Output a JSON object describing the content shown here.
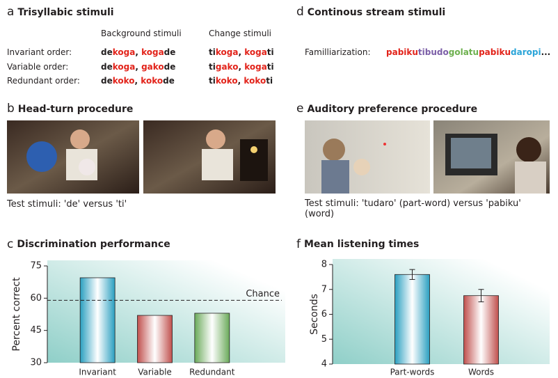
{
  "panels": {
    "a": {
      "letter": "a",
      "title": "Trisyllabic stimuli",
      "column_headers": [
        "Background stimuli",
        "Change stimuli"
      ],
      "rows": [
        {
          "label": "Invariant order:",
          "background": [
            "de",
            "koga",
            ", ",
            "koga",
            "de"
          ],
          "change": [
            "ti",
            "koga",
            ", ",
            "koga",
            "ti"
          ]
        },
        {
          "label": "Variable order:",
          "background": [
            "de",
            "koga",
            ", ",
            "gako",
            "de"
          ],
          "change": [
            "ti",
            "gako",
            ", ",
            "koga",
            "ti"
          ]
        },
        {
          "label": "Redundant order:",
          "background": [
            "de",
            "koko",
            ", ",
            "koko",
            "de"
          ],
          "change": [
            "ti",
            "koko",
            ", ",
            "koko",
            "ti"
          ]
        }
      ],
      "segment_colors": [
        "#231f20",
        "#e2231a",
        "#231f20",
        "#e2231a",
        "#231f20"
      ]
    },
    "b": {
      "letter": "b",
      "title": "Head-turn procedure",
      "caption": "Test stimuli: 'de' versus 'ti'"
    },
    "d": {
      "letter": "d",
      "title": "Continous stream stimuli",
      "label": "Familliarization:",
      "stream": [
        "pabiku",
        "tibudo",
        "golatu",
        "pabiku",
        "daropi",
        "..."
      ],
      "stream_colors": [
        "#e2231a",
        "#7b5ea7",
        "#6db04e",
        "#e2231a",
        "#2aa4d8",
        "#231f20"
      ]
    },
    "e": {
      "letter": "e",
      "title": "Auditory preference procedure",
      "caption": "Test stimuli: 'tudaro' (part-word) versus 'pabiku' (word)"
    }
  },
  "chart_data": [
    {
      "type": "bar",
      "letter": "c",
      "title": "Discrimination performance",
      "ylabel": "Percent correct",
      "categories": [
        "Invariant",
        "Variable",
        "Redundant"
      ],
      "values": [
        69.5,
        52,
        53
      ],
      "colors": [
        "#2a9fc0",
        "#c0504d",
        "#6aaa5a"
      ],
      "ylim": [
        30,
        75
      ],
      "yticks": [
        30,
        45,
        60,
        75
      ],
      "reference_line": {
        "value": 59,
        "label": "Chance"
      }
    },
    {
      "type": "bar",
      "letter": "f",
      "title": "Mean listening times",
      "ylabel": "Seconds",
      "categories": [
        "Part-words",
        "Words"
      ],
      "values": [
        7.6,
        6.75
      ],
      "errors": [
        0.2,
        0.25
      ],
      "colors": [
        "#2a9fc0",
        "#c0504d"
      ],
      "ylim": [
        4,
        8
      ],
      "yticks": [
        4,
        5,
        6,
        7,
        8
      ]
    }
  ]
}
